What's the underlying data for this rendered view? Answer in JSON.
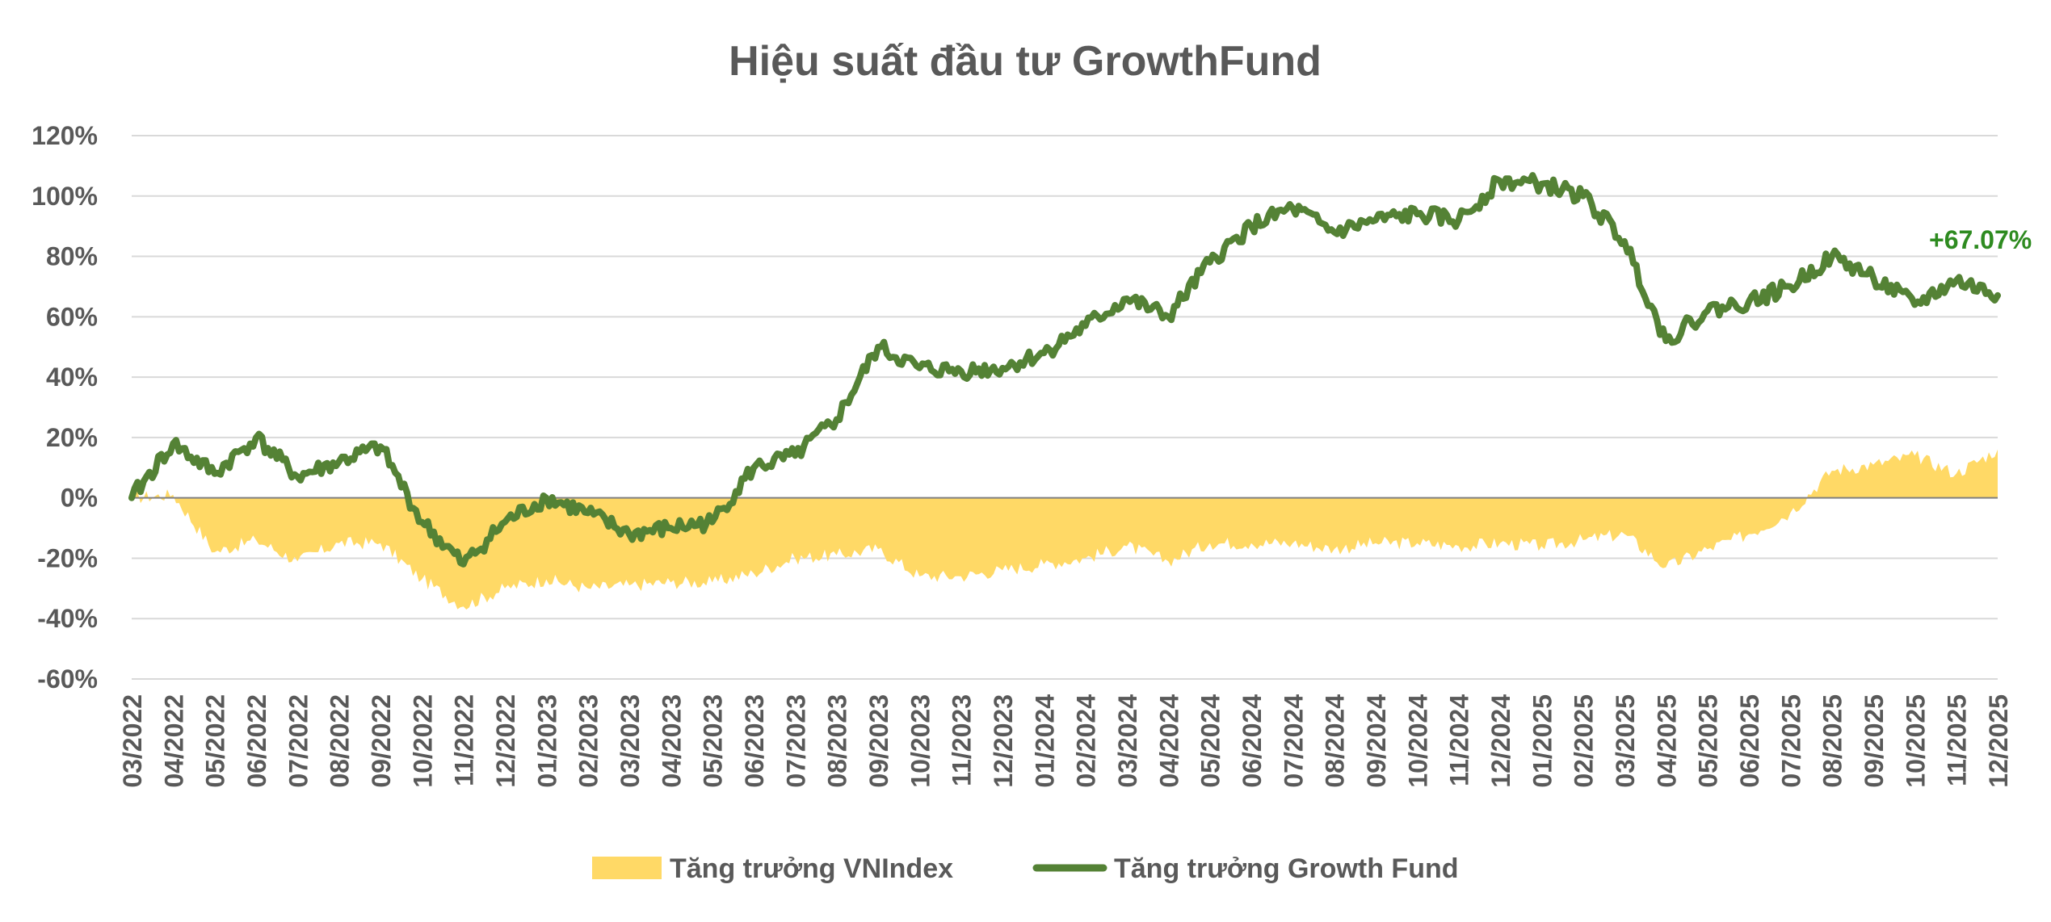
{
  "chart_data": {
    "type": "area",
    "title": "Hiệu suất đầu tư GrowthFund",
    "xlabel": "",
    "ylabel": "",
    "ylim": [
      -60,
      120
    ],
    "y_ticks": [
      "120%",
      "100%",
      "80%",
      "60%",
      "40%",
      "20%",
      "0%",
      "-20%",
      "-40%",
      "-60%"
    ],
    "x_ticks": [
      "03/2022",
      "04/2022",
      "05/2022",
      "06/2022",
      "07/2022",
      "08/2022",
      "09/2022",
      "10/2022",
      "11/2022",
      "12/2022",
      "01/2023",
      "02/2023",
      "03/2023",
      "04/2023",
      "05/2023",
      "06/2023",
      "07/2023",
      "08/2023",
      "09/2023",
      "10/2023",
      "11/2023",
      "12/2023",
      "01/2024",
      "02/2024",
      "03/2024",
      "04/2024",
      "05/2024",
      "06/2024",
      "07/2024",
      "08/2024",
      "09/2024",
      "10/2024",
      "11/2024",
      "12/2024",
      "01/2025",
      "02/2025",
      "03/2025",
      "04/2025",
      "05/2025",
      "06/2025",
      "07/2025",
      "08/2025",
      "09/2025",
      "10/2025",
      "11/2025",
      "12/2025"
    ],
    "grid": true,
    "legend_position": "bottom",
    "series": [
      {
        "name": "Tăng trưởng VNIndex",
        "kind": "area",
        "color": "#FFD966",
        "x": [
          "03/2022",
          "04/2022",
          "05/2022",
          "06/2022",
          "07/2022",
          "08/2022",
          "09/2022",
          "10/2022",
          "11/2022",
          "12/2022",
          "01/2023",
          "02/2023",
          "03/2023",
          "04/2023",
          "05/2023",
          "06/2023",
          "07/2023",
          "08/2023",
          "09/2023",
          "10/2023",
          "11/2023",
          "12/2023",
          "01/2024",
          "02/2024",
          "03/2024",
          "04/2024",
          "05/2024",
          "06/2024",
          "07/2024",
          "08/2024",
          "09/2024",
          "10/2024",
          "11/2024",
          "12/2024",
          "01/2025",
          "02/2025",
          "03/2025",
          "04/2025",
          "05/2025",
          "06/2025",
          "07/2025",
          "08/2025",
          "09/2025",
          "10/2025",
          "11/2025",
          "12/2025"
        ],
        "values": [
          0,
          1,
          -18,
          -14,
          -21,
          -15,
          -15,
          -27,
          -36,
          -30,
          -27,
          -30,
          -29,
          -28,
          -28,
          -25,
          -20,
          -19,
          -17,
          -26,
          -26,
          -24,
          -22,
          -20,
          -16,
          -21,
          -15,
          -15,
          -15,
          -17,
          -15,
          -15,
          -16,
          -15,
          -16,
          -14,
          -12,
          -23,
          -17,
          -12,
          -5,
          9,
          11,
          14,
          8,
          16
        ]
      },
      {
        "name": "Tăng trưởng Growth Fund",
        "kind": "line",
        "color": "#548235",
        "x": [
          "03/2022",
          "04/2022",
          "05/2022",
          "06/2022",
          "07/2022",
          "08/2022",
          "09/2022",
          "10/2022",
          "11/2022",
          "12/2022",
          "01/2023",
          "02/2023",
          "03/2023",
          "04/2023",
          "05/2023",
          "06/2023",
          "07/2023",
          "08/2023",
          "09/2023",
          "10/2023",
          "11/2023",
          "12/2023",
          "01/2024",
          "02/2024",
          "03/2024",
          "04/2024",
          "05/2024",
          "06/2024",
          "07/2024",
          "08/2024",
          "09/2024",
          "10/2024",
          "11/2024",
          "12/2024",
          "01/2025",
          "02/2025",
          "03/2025",
          "04/2025",
          "05/2025",
          "06/2025",
          "07/2025",
          "08/2025",
          "09/2025",
          "10/2025",
          "11/2025",
          "12/2025"
        ],
        "values": [
          0,
          18,
          8,
          20,
          7,
          12,
          17,
          -8,
          -22,
          -8,
          0,
          -5,
          -12,
          -10,
          -8,
          10,
          14,
          26,
          50,
          43,
          42,
          43,
          48,
          57,
          66,
          60,
          78,
          90,
          96,
          88,
          92,
          94,
          92,
          105,
          104,
          100,
          85,
          52,
          62,
          65,
          70,
          80,
          73,
          64,
          72,
          67.07
        ]
      }
    ],
    "annotations": [
      {
        "text": "+67.07%",
        "series": "Tăng trưởng Growth Fund",
        "x": "12/2025",
        "y": 67.07
      }
    ]
  }
}
